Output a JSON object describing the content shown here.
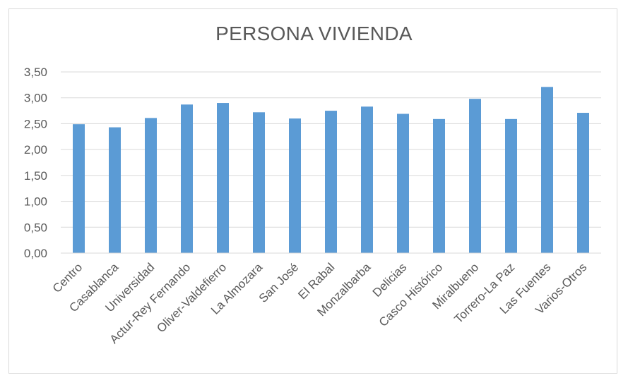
{
  "chart_data": {
    "type": "bar",
    "title": "PERSONA VIVIENDA",
    "xlabel": "",
    "ylabel": "",
    "categories": [
      "Centro",
      "Casablanca",
      "Universidad",
      "Actur-Rey Fernando",
      "Oliver-Valdefierro",
      "La Almozara",
      "San José",
      "El Rabal",
      "Monzalbarba",
      "Delicias",
      "Casco Histórico",
      "Miralbueno",
      "Torrero-La Paz",
      "Las Fuentes",
      "Varios-Otros"
    ],
    "values": [
      2.49,
      2.43,
      2.61,
      2.87,
      2.9,
      2.72,
      2.6,
      2.75,
      2.83,
      2.69,
      2.59,
      2.98,
      2.59,
      3.21,
      2.71
    ],
    "ylim": [
      0,
      3.5
    ],
    "yticks": [
      "0,00",
      "0,50",
      "1,00",
      "1,50",
      "2,00",
      "2,50",
      "3,00",
      "3,50"
    ],
    "grid": true,
    "legend": "none",
    "bar_color": "#5b9bd5",
    "grid_color": "#d9d9d9"
  }
}
